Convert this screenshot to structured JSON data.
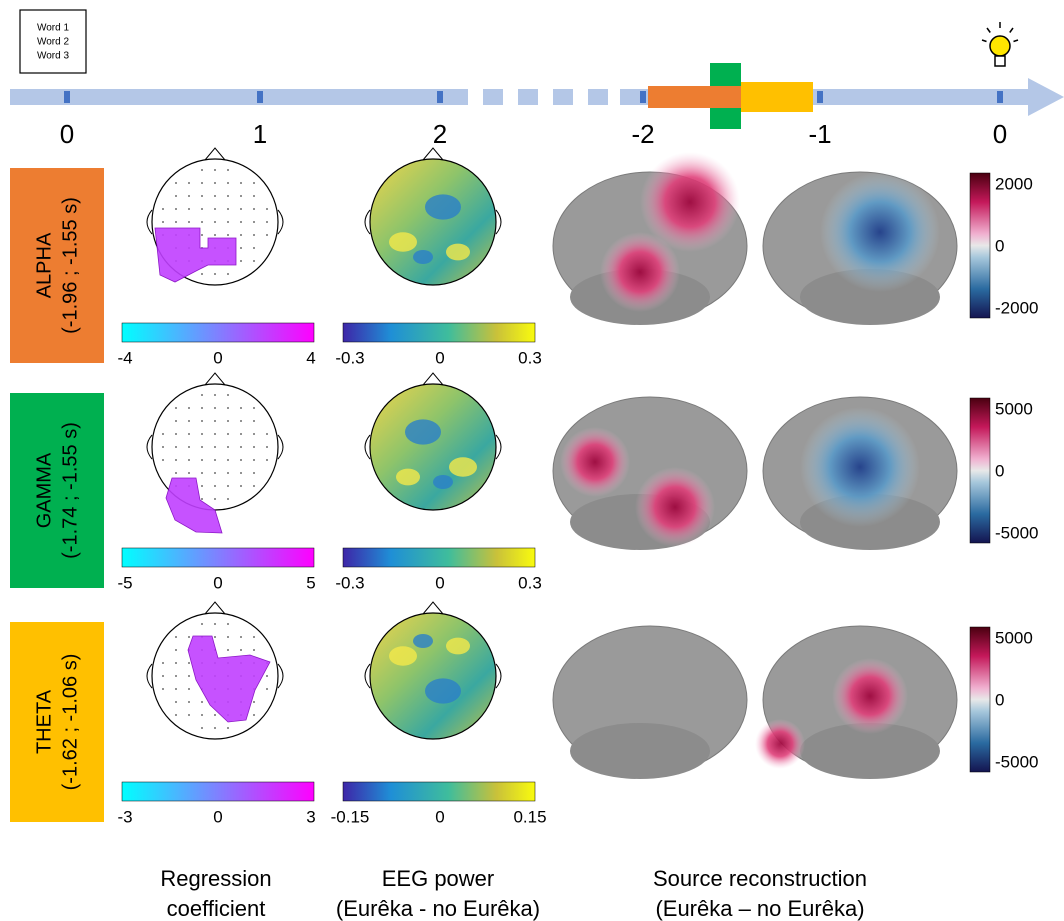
{
  "word_box": [
    "Word 1",
    "Word 2",
    "Word 3"
  ],
  "timeline": {
    "labels": [
      "0",
      "1",
      "2",
      "-2",
      "-1",
      "0"
    ]
  },
  "rows": [
    {
      "band": "ALPHA",
      "window": "(-1.96 ; -1.55 s)",
      "regression_ticks": [
        "-4",
        "0",
        "4"
      ],
      "eeg_ticks": [
        "-0.3",
        "0",
        "0.3"
      ],
      "source_ticks": [
        "2000",
        "0",
        "-2000"
      ]
    },
    {
      "band": "GAMMA",
      "window": "(-1.74 ; -1.55 s)",
      "regression_ticks": [
        "-5",
        "0",
        "5"
      ],
      "eeg_ticks": [
        "-0.3",
        "0",
        "0.3"
      ],
      "source_ticks": [
        "5000",
        "0",
        "-5000"
      ]
    },
    {
      "band": "THETA",
      "window": "(-1.62 ; -1.06 s)",
      "regression_ticks": [
        "-3",
        "0",
        "3"
      ],
      "eeg_ticks": [
        "-0.15",
        "0",
        "0.15"
      ],
      "source_ticks": [
        "5000",
        "0",
        "-5000"
      ]
    }
  ],
  "columns": [
    [
      "Regression",
      "coefficient"
    ],
    [
      "EEG power",
      "(Eurêka - no Eurêka)"
    ],
    [
      "Source reconstruction",
      "(Eurêka – no Eurêka)"
    ]
  ]
}
